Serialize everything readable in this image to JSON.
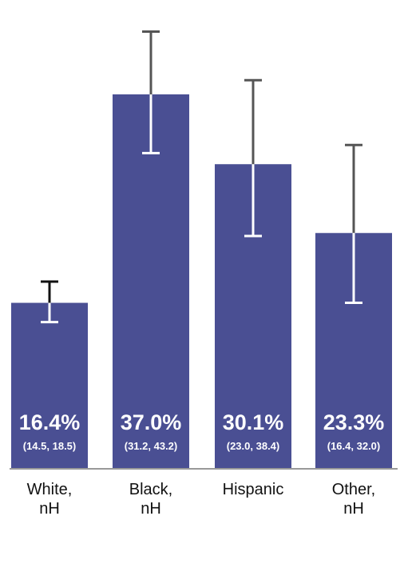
{
  "chart_data": {
    "type": "bar",
    "categories": [
      "White,\nnH",
      "Black,\nnH",
      "Hispanic",
      "Other,\nnH"
    ],
    "values": [
      16.4,
      37.0,
      30.1,
      23.3
    ],
    "value_labels": [
      "16.4%",
      "37.0%",
      "30.1%",
      "23.3%"
    ],
    "ci_low": [
      14.5,
      31.2,
      23.0,
      16.4
    ],
    "ci_high": [
      18.5,
      43.2,
      38.4,
      32.0
    ],
    "ci_labels": [
      "(14.5, 18.5)",
      "(31.2, 43.2)",
      "(23.0, 38.4)",
      "(16.4, 32.0)"
    ],
    "ylim": [
      0,
      45
    ],
    "title": "",
    "xlabel": "",
    "ylabel": "",
    "grid": false,
    "colors": {
      "bar": "#4a4f93",
      "error_bar_outside": "#555555",
      "error_bar_inside": "#ffffff",
      "white_bar_whisker": "#111111",
      "baseline": "#999999",
      "label_text": "#ffffff"
    }
  }
}
